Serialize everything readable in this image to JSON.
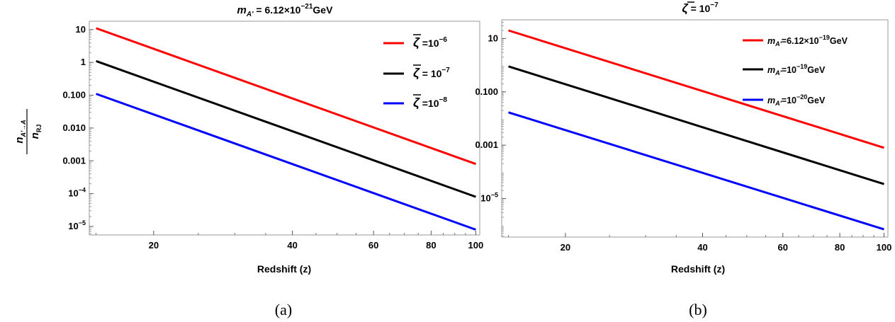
{
  "figure": {
    "caption_a": "(a)",
    "caption_b": "(b)"
  },
  "chart_data": [
    {
      "type": "line",
      "title": "m_{A'} = 6.12×10^{-21}GeV",
      "xlabel": "Redshift (z)",
      "ylabel": "n_{A'→A} / n_{RJ}",
      "xscale": "log",
      "yscale": "log",
      "xlim": [
        14.5,
        102
      ],
      "ylim": [
        5.5e-06,
        18
      ],
      "xticks": [
        20,
        40,
        60,
        80,
        100
      ],
      "yticks": [
        {
          "value": 10,
          "base": "10",
          "exp": ""
        },
        {
          "value": 1,
          "base": "1",
          "exp": ""
        },
        {
          "value": 0.1,
          "base": "0.100",
          "exp": ""
        },
        {
          "value": 0.01,
          "base": "0.010",
          "exp": ""
        },
        {
          "value": 0.001,
          "base": "0.001",
          "exp": ""
        },
        {
          "value": 0.0001,
          "base": "10",
          "exp": "−4"
        },
        {
          "value": 1e-05,
          "base": "10",
          "exp": "−5"
        }
      ],
      "legend_position": "top-right",
      "grid": false,
      "series": [
        {
          "name": "ζ̄ =10^{-6}",
          "color": "#ff0000",
          "x": [
            15,
            100
          ],
          "y": [
            11.0,
            0.0008
          ]
        },
        {
          "name": "ζ̄ = 10^{-7}",
          "color": "#000000",
          "x": [
            15,
            100
          ],
          "y": [
            1.1,
            8e-05
          ]
        },
        {
          "name": "ζ̄ =10^{-8}",
          "color": "#0000ff",
          "x": [
            15,
            100
          ],
          "y": [
            0.11,
            8e-06
          ]
        }
      ]
    },
    {
      "type": "line",
      "title": "ζ̄ = 10^{-7}",
      "xlabel": "Redshift (z)",
      "ylabel": "",
      "xscale": "log",
      "yscale": "log",
      "xlim": [
        14.5,
        102
      ],
      "ylim": [
        3.6e-07,
        50
      ],
      "xticks": [
        20,
        40,
        60,
        80,
        100
      ],
      "yticks": [
        {
          "value": 10,
          "base": "10",
          "exp": ""
        },
        {
          "value": 0.1,
          "base": "0.100",
          "exp": ""
        },
        {
          "value": 0.001,
          "base": "0.001",
          "exp": ""
        },
        {
          "value": 1e-05,
          "base": "10",
          "exp": "−5"
        }
      ],
      "legend_position": "top-right",
      "grid": false,
      "series": [
        {
          "name": "m_{A'}=6.12×10^{-19}GeV",
          "color": "#ff0000",
          "x": [
            15,
            100
          ],
          "y": [
            20.0,
            0.0008
          ]
        },
        {
          "name": "m_{A'}=10^{-19}GeV",
          "color": "#000000",
          "x": [
            15,
            100
          ],
          "y": [
            0.9,
            3.5e-05
          ]
        },
        {
          "name": "m_{A'}=10^{-20}GeV",
          "color": "#0000ff",
          "x": [
            15,
            100
          ],
          "y": [
            0.017,
            7e-07
          ]
        }
      ]
    }
  ]
}
